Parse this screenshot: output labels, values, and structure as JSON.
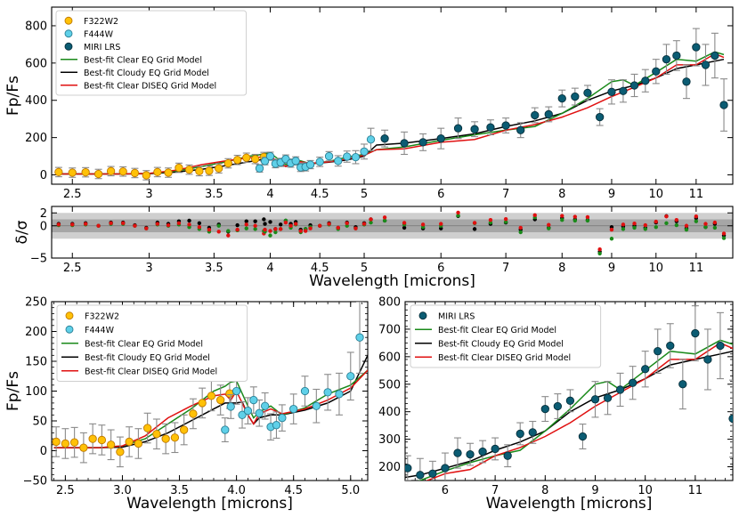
{
  "chart_data": [
    {
      "panel": "top-spectrum",
      "type": "scatter",
      "ylabel": "Fp/Fs",
      "xscale": "log",
      "xlim": [
        2.38,
        12.0
      ],
      "ylim": [
        -50,
        900
      ],
      "xticks": [
        {
          "v": 2.5,
          "label": "2.5"
        },
        {
          "v": 3,
          "label": "3"
        },
        {
          "v": 3.5,
          "label": "3.5"
        },
        {
          "v": 4,
          "label": "4"
        },
        {
          "v": 4.5,
          "label": "4.5"
        },
        {
          "v": 5,
          "label": "5"
        },
        {
          "v": 6,
          "label": "6"
        },
        {
          "v": 7,
          "label": "7"
        },
        {
          "v": 8,
          "label": "8"
        },
        {
          "v": 9,
          "label": "9"
        },
        {
          "v": 10,
          "label": "10"
        },
        {
          "v": 11,
          "label": "11"
        }
      ],
      "yticks": [
        {
          "v": 0,
          "label": "0"
        },
        {
          "v": 200,
          "label": "200"
        },
        {
          "v": 400,
          "label": "400"
        },
        {
          "v": 600,
          "label": "600"
        },
        {
          "v": 800,
          "label": "800"
        }
      ],
      "legend": [
        "F322W2",
        "F444W",
        "MIRI LRS",
        "Best-fit Clear EQ Grid Model",
        "Best-fit Cloudy EQ Grid Model",
        "Best-fit Clear DISEQ Grid Model"
      ],
      "legend_position": "upper-left"
    },
    {
      "panel": "residuals",
      "type": "scatter",
      "ylabel": "δ/σ",
      "xlabel": "Wavelength [microns]",
      "xscale": "log",
      "xlim": [
        2.38,
        12.0
      ],
      "ylim": [
        -5,
        3
      ],
      "xticks": [
        {
          "v": 2.5,
          "label": "2.5"
        },
        {
          "v": 3,
          "label": "3"
        },
        {
          "v": 3.5,
          "label": "3.5"
        },
        {
          "v": 4,
          "label": "4"
        },
        {
          "v": 4.5,
          "label": "4.5"
        },
        {
          "v": 5,
          "label": "5"
        },
        {
          "v": 6,
          "label": "6"
        },
        {
          "v": 7,
          "label": "7"
        },
        {
          "v": 8,
          "label": "8"
        },
        {
          "v": 9,
          "label": "9"
        },
        {
          "v": 10,
          "label": "10"
        },
        {
          "v": 11,
          "label": "11"
        }
      ],
      "yticks": [
        {
          "v": -5,
          "label": "−5"
        },
        {
          "v": 0,
          "label": "0"
        },
        {
          "v": 2,
          "label": "2"
        }
      ],
      "bands": [
        {
          "sigma": 1
        },
        {
          "sigma": 2
        }
      ]
    },
    {
      "panel": "zoom-nircam",
      "type": "scatter",
      "ylabel": "Fp/Fs",
      "xlabel": "Wavelength [microns]",
      "xscale": "linear",
      "xlim": [
        2.38,
        5.15
      ],
      "ylim": [
        -50,
        250
      ],
      "xticks": [
        {
          "v": 2.5,
          "label": "2.5"
        },
        {
          "v": 3.0,
          "label": "3.0"
        },
        {
          "v": 3.5,
          "label": "3.5"
        },
        {
          "v": 4.0,
          "label": "4.0"
        },
        {
          "v": 4.5,
          "label": "4.5"
        },
        {
          "v": 5.0,
          "label": "5.0"
        }
      ],
      "yticks": [
        {
          "v": -50,
          "label": "−50"
        },
        {
          "v": 0,
          "label": "0"
        },
        {
          "v": 50,
          "label": "50"
        },
        {
          "v": 100,
          "label": "100"
        },
        {
          "v": 150,
          "label": "150"
        },
        {
          "v": 200,
          "label": "200"
        },
        {
          "v": 250,
          "label": "250"
        }
      ],
      "legend": [
        "F322W2",
        "F444W",
        "Best-fit Clear EQ Grid Model",
        "Best-fit Cloudy EQ Grid Model",
        "Best-fit Clear DISEQ Grid Model"
      ],
      "legend_position": "upper-left"
    },
    {
      "panel": "zoom-miri",
      "type": "scatter",
      "xlabel": "Wavelength [microns]",
      "xscale": "linear",
      "xlim": [
        5.2,
        11.75
      ],
      "ylim": [
        150,
        800
      ],
      "xticks": [
        {
          "v": 6,
          "label": "6"
        },
        {
          "v": 7,
          "label": "7"
        },
        {
          "v": 8,
          "label": "8"
        },
        {
          "v": 9,
          "label": "9"
        },
        {
          "v": 10,
          "label": "10"
        },
        {
          "v": 11,
          "label": "11"
        }
      ],
      "yticks": [
        {
          "v": 200,
          "label": "200"
        },
        {
          "v": 300,
          "label": "300"
        },
        {
          "v": 400,
          "label": "400"
        },
        {
          "v": 500,
          "label": "500"
        },
        {
          "v": 600,
          "label": "600"
        },
        {
          "v": 700,
          "label": "700"
        },
        {
          "v": 800,
          "label": "800"
        }
      ],
      "legend": [
        "MIRI LRS",
        "Best-fit Clear EQ Grid Model",
        "Best-fit Cloudy EQ Grid Model",
        "Best-fit Clear DISEQ Grid Model"
      ],
      "legend_position": "upper-left"
    }
  ],
  "series_style": {
    "F322W2": {
      "color": "#FFC107",
      "edge": "#C07A00"
    },
    "F444W": {
      "color": "#5FD0E8",
      "edge": "#2A7F95"
    },
    "MIRI LRS": {
      "color": "#0B5C73",
      "edge": "#062F3B"
    },
    "Clear EQ": {
      "color": "#1A8A1A"
    },
    "Cloudy EQ": {
      "color": "#000000"
    },
    "Clear DISEQ": {
      "color": "#E01010"
    }
  },
  "data": {
    "F322W2": {
      "x": [
        2.42,
        2.5,
        2.58,
        2.66,
        2.74,
        2.82,
        2.9,
        2.98,
        3.06,
        3.14,
        3.22,
        3.3,
        3.38,
        3.46,
        3.54,
        3.62,
        3.7,
        3.78,
        3.86,
        3.94
      ],
      "y": [
        15,
        12,
        14,
        5,
        20,
        18,
        10,
        -2,
        15,
        12,
        38,
        28,
        20,
        22,
        35,
        62,
        80,
        92,
        85,
        96
      ],
      "err": [
        25,
        25,
        25,
        25,
        25,
        25,
        25,
        25,
        25,
        25,
        25,
        25,
        25,
        25,
        25,
        25,
        25,
        25,
        25,
        25
      ]
    },
    "F444W": {
      "x": [
        3.9,
        3.95,
        4.0,
        4.05,
        4.1,
        4.15,
        4.2,
        4.25,
        4.3,
        4.35,
        4.4,
        4.5,
        4.6,
        4.7,
        4.8,
        4.9,
        5.0,
        5.08
      ],
      "y": [
        35,
        74,
        100,
        60,
        67,
        85,
        63,
        75,
        40,
        43,
        55,
        70,
        100,
        75,
        98,
        95,
        125,
        190
      ],
      "err": [
        20,
        20,
        22,
        22,
        22,
        22,
        22,
        22,
        22,
        22,
        22,
        25,
        25,
        28,
        30,
        35,
        40,
        60
      ]
    },
    "MIRI LRS": {
      "x": [
        5.25,
        5.5,
        5.75,
        6.0,
        6.25,
        6.5,
        6.75,
        7.0,
        7.25,
        7.5,
        7.75,
        8.0,
        8.25,
        8.5,
        8.75,
        9.0,
        9.25,
        9.5,
        9.75,
        10.0,
        10.25,
        10.5,
        10.75,
        11.0,
        11.25,
        11.5,
        11.75
      ],
      "y": [
        195,
        170,
        175,
        195,
        250,
        245,
        255,
        265,
        240,
        320,
        325,
        410,
        420,
        440,
        310,
        445,
        450,
        480,
        505,
        555,
        620,
        640,
        500,
        685,
        590,
        640,
        375
      ],
      "err": [
        45,
        60,
        45,
        55,
        55,
        40,
        40,
        40,
        40,
        40,
        40,
        45,
        45,
        40,
        45,
        65,
        60,
        60,
        60,
        65,
        80,
        80,
        90,
        100,
        110,
        120,
        140
      ]
    },
    "Clear EQ": {
      "x": [
        2.4,
        2.8,
        3.0,
        3.2,
        3.4,
        3.6,
        3.8,
        3.9,
        3.95,
        4.0,
        4.1,
        4.15,
        4.2,
        4.3,
        4.4,
        4.6,
        4.8,
        5.0,
        5.15,
        5.5,
        6.0,
        6.5,
        7.0,
        7.5,
        8.0,
        8.5,
        9.0,
        9.25,
        9.5,
        10.0,
        10.5,
        11.0,
        11.5,
        11.75
      ],
      "y": [
        5,
        5,
        8,
        20,
        45,
        70,
        100,
        108,
        115,
        117,
        75,
        55,
        65,
        75,
        60,
        72,
        95,
        110,
        135,
        150,
        185,
        215,
        240,
        260,
        330,
        410,
        500,
        510,
        480,
        550,
        620,
        610,
        660,
        645
      ]
    },
    "Cloudy EQ": {
      "x": [
        2.4,
        2.8,
        3.0,
        3.2,
        3.4,
        3.6,
        3.8,
        3.9,
        4.0,
        4.05,
        4.1,
        4.15,
        4.2,
        4.3,
        4.4,
        4.6,
        4.8,
        5.0,
        5.15,
        5.5,
        6.0,
        6.5,
        7.0,
        7.5,
        8.0,
        8.5,
        9.0,
        9.5,
        10.0,
        10.5,
        11.0,
        11.5,
        11.75
      ],
      "y": [
        5,
        5,
        6,
        15,
        30,
        50,
        70,
        80,
        80,
        82,
        60,
        45,
        55,
        60,
        60,
        68,
        80,
        100,
        160,
        170,
        195,
        220,
        260,
        290,
        330,
        400,
        450,
        480,
        520,
        570,
        590,
        610,
        620
      ]
    },
    "Clear DISEQ": {
      "x": [
        2.4,
        2.8,
        3.0,
        3.2,
        3.4,
        3.6,
        3.8,
        3.9,
        3.95,
        4.0,
        4.1,
        4.15,
        4.2,
        4.3,
        4.4,
        4.6,
        4.8,
        5.0,
        5.15,
        5.5,
        6.0,
        6.5,
        7.0,
        7.5,
        8.0,
        8.5,
        9.0,
        9.5,
        10.0,
        10.5,
        11.0,
        11.5,
        11.75
      ],
      "y": [
        5,
        5,
        8,
        25,
        55,
        75,
        92,
        95,
        85,
        100,
        60,
        45,
        62,
        70,
        62,
        70,
        85,
        105,
        135,
        140,
        175,
        190,
        240,
        270,
        310,
        360,
        420,
        470,
        520,
        590,
        590,
        650,
        630
      ]
    },
    "residuals": {
      "F322W2": {
        "x": [
          2.42,
          2.5,
          2.58,
          2.66,
          2.74,
          2.82,
          2.9,
          2.98,
          3.06,
          3.14,
          3.22,
          3.3,
          3.38,
          3.46,
          3.54,
          3.62,
          3.7,
          3.78,
          3.86,
          3.94
        ],
        "black": [
          0.3,
          0.3,
          0.4,
          0.0,
          0.5,
          0.5,
          0.1,
          -0.3,
          0.5,
          0.3,
          0.7,
          0.8,
          0.4,
          -0.3,
          0.2,
          -0.9,
          0.1,
          0.7,
          0.7,
          1.0
        ],
        "green": [
          0.1,
          0.1,
          0.2,
          0.0,
          0.3,
          0.3,
          0.0,
          -0.4,
          0.2,
          0.0,
          0.2,
          -0.2,
          -0.5,
          -0.9,
          0.0,
          -0.8,
          -0.7,
          -0.4,
          -0.5,
          -0.8
        ],
        "red": [
          0.2,
          0.2,
          0.3,
          0.0,
          0.4,
          0.4,
          0.0,
          -0.4,
          0.3,
          0.1,
          0.4,
          0.2,
          -0.2,
          -0.6,
          -0.9,
          -1.5,
          -0.6,
          0.2,
          0.0,
          -1.2
        ]
      },
      "F444W": {
        "x": [
          3.95,
          4.0,
          4.05,
          4.1,
          4.15,
          4.2,
          4.25,
          4.3,
          4.35,
          4.4,
          4.5,
          4.6,
          4.7,
          4.8,
          4.9,
          5.0,
          5.08
        ],
        "black": [
          0.3,
          0.6,
          -0.5,
          0.2,
          0.8,
          0.3,
          0.6,
          -0.6,
          -0.5,
          0.1,
          0.0,
          0.4,
          -0.3,
          0.5,
          -0.2,
          0.4,
          1.0
        ],
        "green": [
          -0.9,
          -1.5,
          -1.0,
          -0.5,
          0.8,
          -0.3,
          0.2,
          -1.0,
          -0.5,
          -0.2,
          0.0,
          0.2,
          -0.5,
          0.0,
          -0.4,
          0.2,
          0.5
        ],
        "red": [
          -0.6,
          -0.8,
          -0.5,
          -0.5,
          0.5,
          0.0,
          0.3,
          -0.8,
          -0.8,
          -0.4,
          0.0,
          0.3,
          -0.3,
          0.4,
          -0.4,
          0.3,
          1.0
        ]
      },
      "MIRI": {
        "x": [
          5.25,
          5.5,
          5.75,
          6.0,
          6.25,
          6.5,
          6.75,
          7.0,
          7.25,
          7.5,
          7.75,
          8.0,
          8.25,
          8.5,
          8.75,
          9.0,
          9.25,
          9.5,
          9.75,
          10.0,
          10.25,
          10.5,
          10.75,
          11.0,
          11.25,
          11.5,
          11.75
        ],
        "black": [
          0.8,
          -0.3,
          -0.4,
          -0.4,
          1.5,
          -0.5,
          0.3,
          0.5,
          -0.6,
          1.0,
          -0.3,
          1.2,
          1.0,
          0.9,
          -4.0,
          -0.2,
          -0.1,
          0.0,
          -0.3,
          0.5,
          1.5,
          0.7,
          -0.4,
          1.2,
          -0.2,
          0.3,
          -1.5
        ],
        "green": [
          0.8,
          0.2,
          -0.2,
          0.0,
          1.6,
          0.4,
          0.5,
          0.6,
          -1.0,
          1.3,
          -0.4,
          0.9,
          0.8,
          0.8,
          -4.3,
          -2.0,
          -0.5,
          -0.3,
          -0.5,
          -0.2,
          0.4,
          0.1,
          -0.6,
          0.7,
          -0.2,
          -0.3,
          -1.9
        ]
      }
    }
  }
}
